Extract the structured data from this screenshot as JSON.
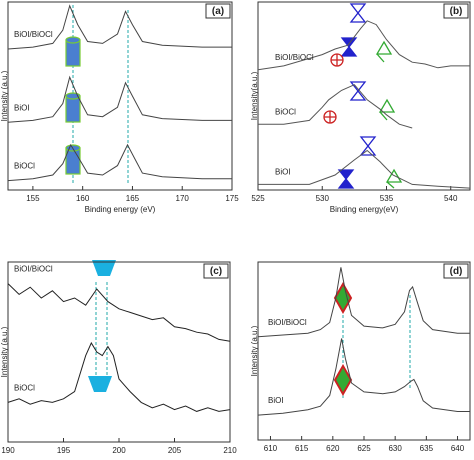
{
  "chart_data": [
    {
      "type": "line",
      "label": "(a)",
      "xlabel": "Binding energy (eV)",
      "ylabel": "Intensity (a.u.)",
      "xlim": [
        152.5,
        175
      ],
      "xticks": [
        155,
        160,
        165,
        170,
        175
      ],
      "ylim": [
        0,
        100
      ],
      "series": [
        {
          "name": "BiOI/BiOCl",
          "color": "#444444",
          "x": [
            152.5,
            155,
            157,
            158,
            158.7,
            159.5,
            160.5,
            162,
            163.5,
            164.3,
            165,
            166,
            168,
            172,
            175
          ],
          "values": [
            75,
            76,
            78,
            85,
            98,
            88,
            79,
            78,
            83,
            95,
            88,
            79,
            77,
            76,
            76
          ]
        },
        {
          "name": "BiOI",
          "color": "#444444",
          "x": [
            152.5,
            155,
            157,
            158,
            158.7,
            159.5,
            160.5,
            162,
            163.5,
            164.3,
            165,
            166,
            168,
            172,
            175
          ],
          "values": [
            36,
            37,
            39,
            46,
            60,
            50,
            40,
            39,
            44,
            57,
            50,
            40,
            38,
            37,
            37
          ]
        },
        {
          "name": "BiOCl",
          "color": "#444444",
          "x": [
            152.5,
            155,
            157,
            158,
            158.8,
            159.5,
            160.5,
            162,
            163.5,
            164.5,
            165.2,
            166,
            168,
            172,
            175
          ],
          "values": [
            5,
            6,
            8,
            14,
            24,
            18,
            9,
            8,
            13,
            24,
            17,
            9,
            7,
            6,
            6
          ]
        }
      ]
    },
    {
      "type": "line",
      "label": "(b)",
      "xlabel": "Binding energy(eV)",
      "ylabel": "Intensity(a.u.)",
      "xlim": [
        525,
        541.5
      ],
      "xticks": [
        525,
        530,
        535,
        540
      ],
      "ylim": [
        0,
        100
      ],
      "series": [
        {
          "name": "BiOI/BiOCl",
          "color": "#555555",
          "x": [
            525,
            527,
            529,
            530,
            531,
            532,
            533,
            533.5,
            534.2,
            535,
            536,
            537,
            538,
            539,
            540,
            541.5
          ],
          "values": [
            64,
            66,
            70,
            72,
            75,
            77,
            86,
            90,
            88,
            80,
            72,
            68,
            67,
            65,
            66,
            66
          ]
        },
        {
          "name": "BiOCl",
          "color": "#555555",
          "x": [
            525,
            527,
            529,
            530,
            530.5,
            531.5,
            532.5,
            533.5,
            534.5,
            535,
            536,
            537
          ],
          "values": [
            35,
            35,
            37,
            44,
            48,
            53,
            56,
            48,
            43,
            40,
            35,
            33
          ]
        },
        {
          "name": "BiOI",
          "color": "#555555",
          "x": [
            525,
            527,
            529,
            531,
            532.5,
            533.5,
            534.5,
            535.5,
            537,
            539,
            541.5
          ],
          "values": [
            3,
            3,
            3,
            8,
            16,
            21,
            15,
            8,
            3,
            2,
            1
          ]
        }
      ]
    },
    {
      "type": "line",
      "label": "(c)",
      "xlabel": "Binding energy (eV)",
      "ylabel": "Intensity (a.u.)",
      "xlim": [
        190,
        210
      ],
      "xticks": [
        190,
        195,
        200,
        205,
        210
      ],
      "ylim": [
        0,
        100
      ],
      "series": [
        {
          "name": "BiOI/BiOCl",
          "color": "#222222",
          "x": [
            190,
            191,
            192,
            193,
            194,
            195,
            196,
            197,
            198,
            199,
            200,
            201,
            202,
            203,
            204,
            205,
            206,
            207,
            208,
            209,
            210
          ],
          "values": [
            88,
            82,
            86,
            80,
            84,
            78,
            80,
            76,
            85,
            78,
            74,
            72,
            70,
            68,
            69,
            64,
            63,
            61,
            60,
            57,
            56
          ]
        },
        {
          "name": "BiOCl",
          "color": "#222222",
          "x": [
            190,
            191,
            192,
            193,
            194,
            195,
            196,
            197,
            197.5,
            198,
            198.5,
            199,
            199.5,
            200,
            201,
            202,
            203,
            204,
            205,
            206,
            207,
            208,
            209,
            210
          ],
          "values": [
            22,
            24,
            21,
            23,
            22,
            24,
            28,
            48,
            55,
            50,
            48,
            53,
            48,
            35,
            28,
            22,
            19,
            21,
            18,
            20,
            17,
            19,
            17,
            18
          ]
        }
      ]
    },
    {
      "type": "line",
      "label": "(d)",
      "xlabel": "Binding energy (eV)",
      "ylabel": "Intensity (a.u.)",
      "xlim": [
        608,
        642
      ],
      "xticks": [
        610,
        615,
        620,
        625,
        630,
        635,
        640
      ],
      "ylim": [
        0,
        100
      ],
      "series": [
        {
          "name": "BiOI/BiOCl",
          "color": "#444444",
          "x": [
            608,
            612,
            616,
            618,
            619.5,
            620.5,
            621.3,
            622,
            623,
            625,
            628,
            630,
            631.5,
            632.3,
            632.8,
            633.5,
            634.5,
            636,
            640,
            642
          ],
          "values": [
            58,
            59,
            60,
            62,
            66,
            80,
            97,
            84,
            70,
            64,
            63,
            65,
            72,
            84,
            86,
            78,
            67,
            62,
            60,
            60
          ]
        },
        {
          "name": "BiOI",
          "color": "#444444",
          "x": [
            608,
            612,
            616,
            618,
            619.5,
            620.5,
            621.4,
            622,
            623,
            625,
            628,
            630,
            631.5,
            632.5,
            633,
            633.6,
            634.5,
            636,
            640,
            642
          ],
          "values": [
            14,
            15,
            17,
            19,
            25,
            40,
            57,
            46,
            32,
            27,
            26,
            27,
            30,
            33,
            34,
            30,
            22,
            18,
            16,
            16
          ]
        }
      ]
    }
  ]
}
